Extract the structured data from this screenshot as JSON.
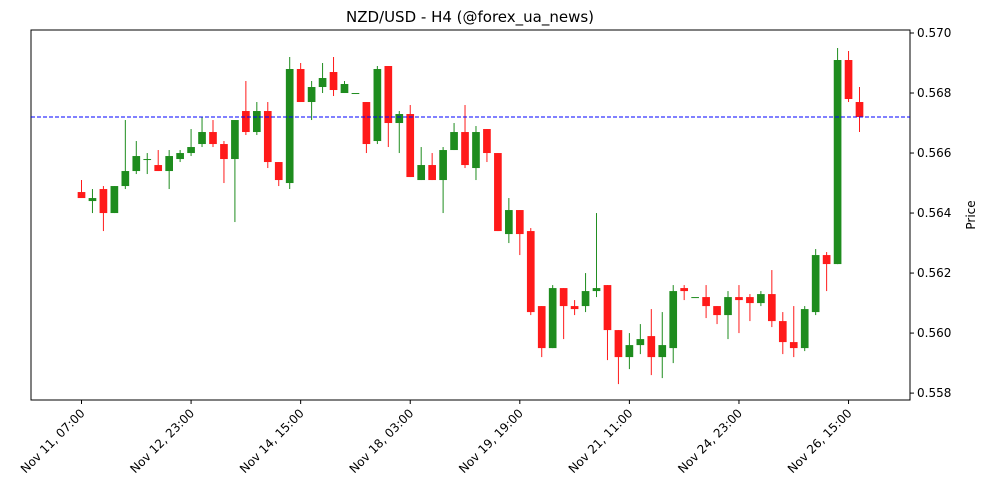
{
  "chart_data": {
    "type": "candlestick",
    "title": "NZD/USD - H4 (@forex_ua_news)",
    "y_label": "Price",
    "categories": [
      "Nov 11, 07:00",
      null,
      null,
      null,
      null,
      null,
      null,
      null,
      null,
      null,
      "Nov 12, 23:00",
      null,
      null,
      null,
      null,
      null,
      null,
      null,
      null,
      null,
      "Nov 14, 15:00",
      null,
      null,
      null,
      null,
      null,
      null,
      null,
      null,
      null,
      "Nov 18, 03:00",
      null,
      null,
      null,
      null,
      null,
      null,
      null,
      null,
      null,
      "Nov 19, 19:00",
      null,
      null,
      null,
      null,
      null,
      null,
      null,
      null,
      null,
      "Nov 21, 11:00",
      null,
      null,
      null,
      null,
      null,
      null,
      null,
      null,
      null,
      "Nov 24, 23:00",
      null,
      null,
      null,
      null,
      null,
      null,
      null,
      null,
      null,
      "Nov 26, 15:00",
      null
    ],
    "open": [
      0.5647,
      0.5644,
      0.5648,
      0.564,
      0.5649,
      0.5654,
      0.5658,
      0.5656,
      0.5654,
      0.5658,
      0.566,
      0.5663,
      0.5667,
      0.5663,
      0.5658,
      0.5674,
      0.5667,
      0.5674,
      0.5657,
      0.565,
      0.5688,
      0.5677,
      0.5682,
      0.5687,
      0.568,
      0.568,
      0.5677,
      0.5664,
      0.5689,
      0.567,
      0.5673,
      0.5651,
      0.5656,
      0.5651,
      0.5661,
      0.5667,
      0.5655,
      0.5668,
      0.566,
      0.5633,
      0.5641,
      0.5634,
      0.5609,
      0.5595,
      0.5615,
      0.5609,
      0.5609,
      0.5614,
      0.5616,
      0.5601,
      0.5592,
      0.5596,
      0.5599,
      0.5592,
      0.5595,
      0.5615,
      0.5612,
      0.5612,
      0.5609,
      0.5606,
      0.5612,
      0.5612,
      0.561,
      0.5613,
      0.5604,
      0.5597,
      0.5595,
      0.5607,
      0.5626,
      0.5623,
      0.5691,
      0.5677
    ],
    "high": [
      0.5651,
      0.5648,
      0.5649,
      0.5649,
      0.5671,
      0.5664,
      0.566,
      0.5661,
      0.5661,
      0.5661,
      0.5668,
      0.5672,
      0.5671,
      0.5664,
      0.5671,
      0.5684,
      0.5677,
      0.5677,
      0.5657,
      0.5692,
      0.569,
      0.5684,
      0.569,
      0.5692,
      0.5684,
      0.568,
      0.5677,
      0.5689,
      0.5689,
      0.5674,
      0.5676,
      0.5662,
      0.566,
      0.5662,
      0.567,
      0.5676,
      0.5669,
      0.5668,
      0.566,
      0.5645,
      0.5641,
      0.5635,
      0.5609,
      0.5616,
      0.5615,
      0.5611,
      0.562,
      0.564,
      0.5616,
      0.5601,
      0.56,
      0.5603,
      0.5608,
      0.5607,
      0.5616,
      0.5616,
      0.5612,
      0.5616,
      0.5609,
      0.5614,
      0.5616,
      0.5613,
      0.5614,
      0.5621,
      0.5607,
      0.5609,
      0.5609,
      0.5628,
      0.5627,
      0.5695,
      0.5694,
      0.5682
    ],
    "low": [
      0.5645,
      0.564,
      0.5634,
      0.564,
      0.5648,
      0.5653,
      0.5653,
      0.5654,
      0.5648,
      0.5657,
      0.5659,
      0.5662,
      0.5662,
      0.565,
      0.5637,
      0.5666,
      0.5666,
      0.5655,
      0.5649,
      0.5648,
      0.5677,
      0.5671,
      0.568,
      0.5679,
      0.568,
      0.568,
      0.566,
      0.5663,
      0.5662,
      0.566,
      0.5652,
      0.5651,
      0.5651,
      0.564,
      0.5661,
      0.5655,
      0.5651,
      0.5657,
      0.5634,
      0.563,
      0.5626,
      0.5606,
      0.5592,
      0.5595,
      0.5598,
      0.5606,
      0.5607,
      0.5612,
      0.5591,
      0.5583,
      0.5588,
      0.5593,
      0.5586,
      0.5585,
      0.559,
      0.5611,
      0.5612,
      0.5605,
      0.5603,
      0.5598,
      0.56,
      0.5604,
      0.5609,
      0.5602,
      0.5593,
      0.5592,
      0.5594,
      0.5606,
      0.5614,
      0.5623,
      0.5677,
      0.5667
    ],
    "close": [
      0.5645,
      0.5645,
      0.564,
      0.5649,
      0.5654,
      0.5659,
      0.5658,
      0.5654,
      0.5659,
      0.566,
      0.5662,
      0.5667,
      0.5663,
      0.5658,
      0.5671,
      0.5667,
      0.5674,
      0.5657,
      0.5651,
      0.5688,
      0.5677,
      0.5682,
      0.5685,
      0.5681,
      0.5683,
      0.568,
      0.5663,
      0.5688,
      0.567,
      0.5673,
      0.5652,
      0.5656,
      0.5651,
      0.5661,
      0.5667,
      0.5656,
      0.5667,
      0.566,
      0.5634,
      0.5641,
      0.5633,
      0.5607,
      0.5595,
      0.5615,
      0.5609,
      0.5608,
      0.5614,
      0.5615,
      0.5601,
      0.5592,
      0.5596,
      0.5598,
      0.5592,
      0.5596,
      0.5614,
      0.5614,
      0.5612,
      0.5609,
      0.5606,
      0.5612,
      0.5611,
      0.561,
      0.5613,
      0.5604,
      0.5597,
      0.5595,
      0.5608,
      0.5626,
      0.5623,
      0.5691,
      0.5678,
      0.5672
    ],
    "up_color": "#1e8c1e",
    "down_color": "#ff1a1a",
    "hline": 0.5672,
    "hline_color": "#0000ff",
    "ylim": [
      0.55777,
      0.5701
    ],
    "yticks": [
      0.558,
      {
        "value": 0.56,
        "label": "0.560"
      },
      0.562,
      0.564,
      0.566,
      0.568,
      {
        "value": 0.57,
        "label": "0.570"
      }
    ]
  }
}
